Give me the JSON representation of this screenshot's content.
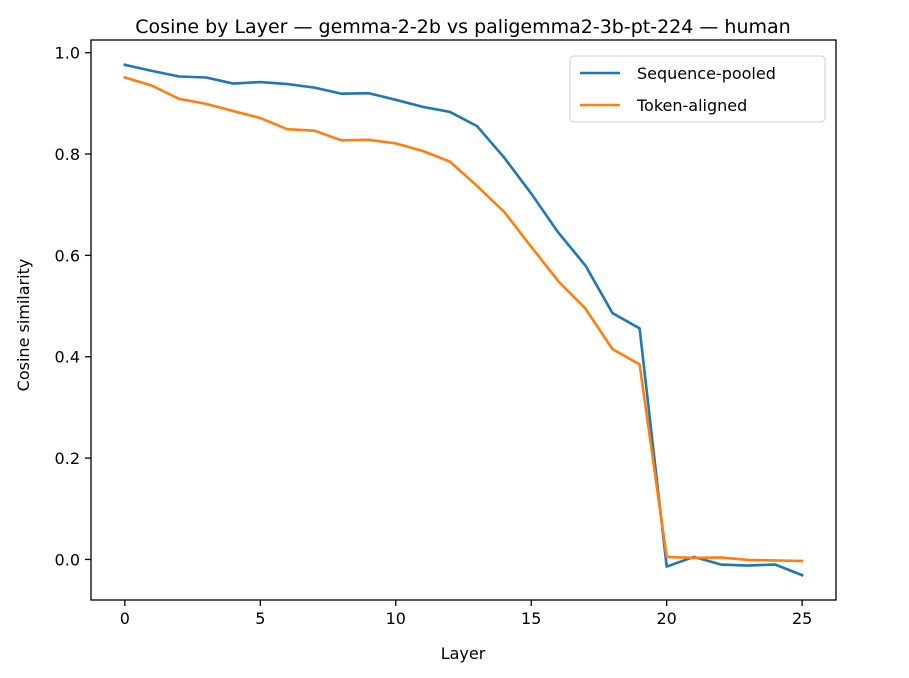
{
  "chart_data": {
    "type": "line",
    "title": "Cosine by Layer — gemma-2-2b vs paligemma2-3b-pt-224 — human",
    "xlabel": "Layer",
    "ylabel": "Cosine similarity",
    "xlim": [
      -1.25,
      26.25
    ],
    "ylim": [
      -0.08,
      1.025
    ],
    "xticks": [
      0,
      5,
      10,
      15,
      20,
      25
    ],
    "xtick_labels": [
      "0",
      "5",
      "10",
      "15",
      "20",
      "25"
    ],
    "yticks": [
      0.0,
      0.2,
      0.4,
      0.6,
      0.8,
      1.0
    ],
    "ytick_labels": [
      "0.0",
      "0.2",
      "0.4",
      "0.6",
      "0.8",
      "1.0"
    ],
    "grid": false,
    "legend_position": "upper right",
    "x": [
      0,
      1,
      2,
      3,
      4,
      5,
      6,
      7,
      8,
      9,
      10,
      11,
      12,
      13,
      14,
      15,
      16,
      17,
      18,
      19,
      20,
      21,
      22,
      23,
      24,
      25
    ],
    "series": [
      {
        "name": "Sequence-pooled",
        "color": "#1f77b4",
        "values": [
          0.976,
          0.964,
          0.953,
          0.951,
          0.939,
          0.942,
          0.938,
          0.931,
          0.919,
          0.92,
          0.907,
          0.893,
          0.883,
          0.855,
          0.793,
          0.722,
          0.645,
          0.58,
          0.486,
          0.456,
          -0.014,
          0.005,
          -0.01,
          -0.012,
          -0.01,
          -0.031
        ]
      },
      {
        "name": "Token-aligned",
        "color": "#ff7f0e",
        "values": [
          0.951,
          0.935,
          0.909,
          0.899,
          0.885,
          0.871,
          0.849,
          0.846,
          0.827,
          0.828,
          0.821,
          0.806,
          0.785,
          0.737,
          0.686,
          0.617,
          0.549,
          0.495,
          0.415,
          0.385,
          0.005,
          0.003,
          0.004,
          -0.001,
          -0.002,
          -0.003
        ]
      }
    ]
  }
}
